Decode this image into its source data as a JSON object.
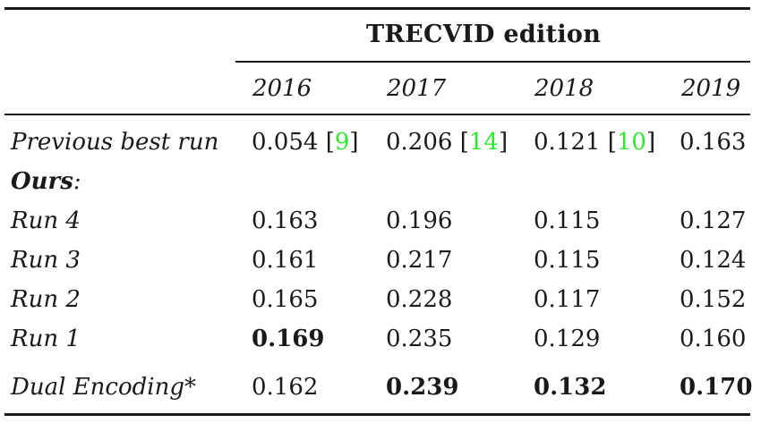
{
  "table": {
    "header": {
      "group_title": "TRECVID edition",
      "years": [
        "2016",
        "2017",
        "2018",
        "2019"
      ]
    },
    "previous": {
      "label": "Previous best run",
      "cells": [
        {
          "value": "0.054",
          "ref": "9"
        },
        {
          "value": "0.206",
          "ref": "14"
        },
        {
          "value": "0.121",
          "ref": "10"
        },
        {
          "value": "0.163",
          "ref": ""
        }
      ]
    },
    "ours_heading": {
      "bold_text": "Ours",
      "suffix": ":"
    },
    "runs": [
      {
        "label": "Run 4",
        "values": [
          "0.163",
          "0.196",
          "0.115",
          "0.127"
        ]
      },
      {
        "label": "Run 3",
        "values": [
          "0.161",
          "0.217",
          "0.115",
          "0.124"
        ]
      },
      {
        "label": "Run 2",
        "values": [
          "0.165",
          "0.228",
          "0.117",
          "0.152"
        ]
      },
      {
        "label": "Run 1",
        "values": [
          "0.169",
          "0.235",
          "0.129",
          "0.160"
        ]
      }
    ],
    "dual": {
      "label": "Dual Encoding*",
      "values": [
        "0.162",
        "0.239",
        "0.132",
        "0.170"
      ]
    },
    "bold_cells": {
      "run1_2016": true,
      "dual_2017": true,
      "dual_2018": true,
      "dual_2019": true
    },
    "colors": {
      "citation": "#2ee82e",
      "text": "#1a1a1a"
    }
  }
}
